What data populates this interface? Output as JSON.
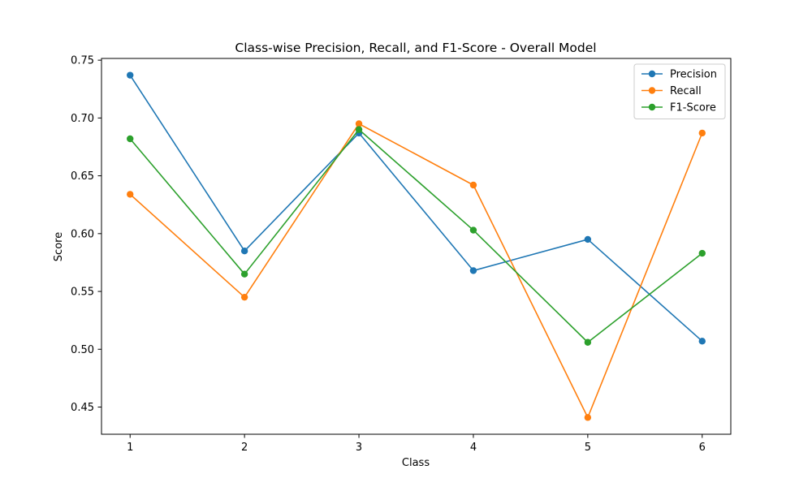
{
  "chart_data": {
    "type": "line",
    "title": "Class-wise Precision, Recall, and F1-Score - Overall Model",
    "xlabel": "Class",
    "ylabel": "Score",
    "x": [
      1,
      2,
      3,
      4,
      5,
      6
    ],
    "x_tick_labels": [
      "1",
      "2",
      "3",
      "4",
      "5",
      "6"
    ],
    "y_ticks": [
      0.45,
      0.5,
      0.55,
      0.6,
      0.65,
      0.7,
      0.75
    ],
    "y_tick_labels": [
      "0.45",
      "0.50",
      "0.55",
      "0.60",
      "0.65",
      "0.70",
      "0.75"
    ],
    "xlim": [
      0.75,
      6.25
    ],
    "ylim": [
      0.4265,
      0.7515
    ],
    "grid": false,
    "legend_position": "top-right",
    "series": [
      {
        "name": "Precision",
        "color": "#1f77b4",
        "marker": "circle",
        "values": [
          0.737,
          0.585,
          0.687,
          0.568,
          0.595,
          0.507
        ]
      },
      {
        "name": "Recall",
        "color": "#ff7f0e",
        "marker": "circle",
        "values": [
          0.634,
          0.545,
          0.695,
          0.642,
          0.441,
          0.687
        ]
      },
      {
        "name": "F1-Score",
        "color": "#2ca02c",
        "marker": "circle",
        "values": [
          0.682,
          0.565,
          0.69,
          0.603,
          0.506,
          0.583
        ]
      }
    ]
  }
}
